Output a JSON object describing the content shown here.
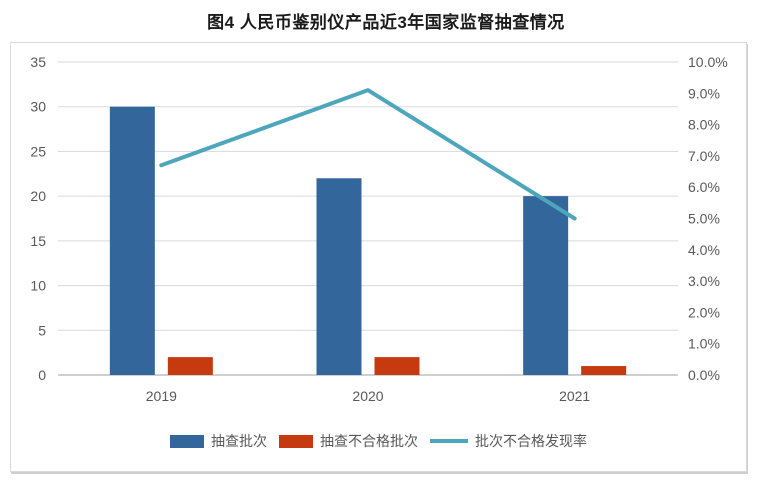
{
  "title": "图4 人民币鉴别仪产品近3年国家监督抽查情况",
  "colors": {
    "bar_primary": "#33669A",
    "bar_secondary": "#C63A10",
    "line_series": "#4DA6BC",
    "gridline": "#D9D9D9",
    "zero_line": "#BFBFBF",
    "axis_text": "#595959",
    "title_text": "#1A1A1A",
    "border": "#D9D9D9"
  },
  "chart_data": {
    "type": "bar",
    "subtype": "bar+line combo, dual axis",
    "title": "图4 人民币鉴别仪产品近3年国家监督抽查情况",
    "categories": [
      "2019",
      "2020",
      "2021"
    ],
    "series": [
      {
        "name": "抽查批次",
        "type": "bar",
        "axis": "left",
        "values": [
          30,
          22,
          20
        ]
      },
      {
        "name": "抽查不合格批次",
        "type": "bar",
        "axis": "left",
        "values": [
          2,
          2,
          1
        ]
      },
      {
        "name": "批次不合格发现率",
        "type": "line",
        "axis": "right",
        "values": [
          6.7,
          9.1,
          5.0
        ],
        "unit": "%"
      }
    ],
    "left_axis": {
      "min": 0,
      "max": 35,
      "step": 5,
      "ticks": [
        "0",
        "5",
        "10",
        "15",
        "20",
        "25",
        "30",
        "35"
      ]
    },
    "right_axis": {
      "min": 0,
      "max": 10,
      "step": 1,
      "ticks": [
        "0.0%",
        "1.0%",
        "2.0%",
        "3.0%",
        "4.0%",
        "5.0%",
        "6.0%",
        "7.0%",
        "8.0%",
        "9.0%",
        "10.0%"
      ]
    },
    "grid": true,
    "legend_position": "bottom",
    "xlabel": "",
    "ylabel_left": "",
    "ylabel_right": ""
  }
}
